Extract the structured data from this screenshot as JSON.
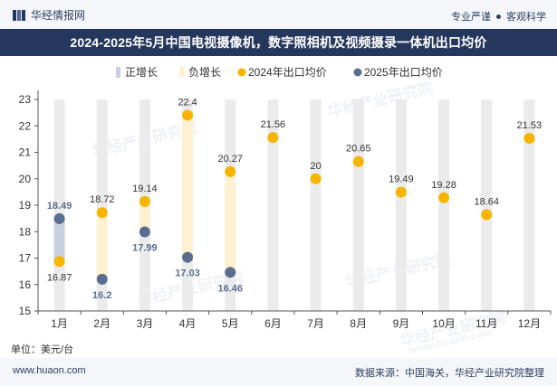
{
  "header": {
    "site_name": "华经情报网",
    "tagline_left": "专业严谨",
    "tagline_right": "客观科学"
  },
  "title": "2024-2025年5月中国电视摄像机，数字照相机及视频摄录一体机出口均价",
  "unit_label": "单位：美元/台",
  "footer": {
    "url": "www.huaon.com",
    "source": "数据来源：中国海关，华经产业研究院整理"
  },
  "watermark": "华经产业研究院",
  "watermark_url": "www.huaon.com",
  "colors": {
    "navy": "#25375d",
    "series_2024": "#f7b500",
    "series_2025": "#5b6d8e",
    "increase_bar": "#c8d0df",
    "decrease_bar": "#fdf1d2",
    "track": "#ebebeb"
  },
  "chart_data": {
    "type": "line",
    "categories": [
      "1月",
      "2月",
      "3月",
      "4月",
      "5月",
      "6月",
      "7月",
      "8月",
      "9月",
      "10月",
      "11月",
      "12月"
    ],
    "ylim": [
      15,
      23
    ],
    "yticks": [
      15,
      16,
      17,
      18,
      19,
      20,
      21,
      22,
      23
    ],
    "legend": [
      "正增长",
      "负增长",
      "2024年出口均价",
      "2025年出口均价"
    ],
    "legend_position": "top",
    "grid": false,
    "series": [
      {
        "name": "2024年出口均价",
        "values": [
          16.87,
          18.72,
          19.14,
          22.4,
          20.27,
          21.56,
          20,
          20.65,
          19.49,
          19.28,
          18.64,
          21.53
        ]
      },
      {
        "name": "2025年出口均价",
        "values": [
          18.49,
          16.2,
          17.99,
          17.03,
          16.46,
          null,
          null,
          null,
          null,
          null,
          null,
          null
        ]
      }
    ],
    "change_bars": [
      {
        "month": "1月",
        "type": "正增长"
      },
      {
        "month": "2月",
        "type": "负增长"
      },
      {
        "month": "3月",
        "type": "负增长"
      },
      {
        "month": "4月",
        "type": "负增长"
      },
      {
        "month": "5月",
        "type": "负增长"
      }
    ]
  }
}
